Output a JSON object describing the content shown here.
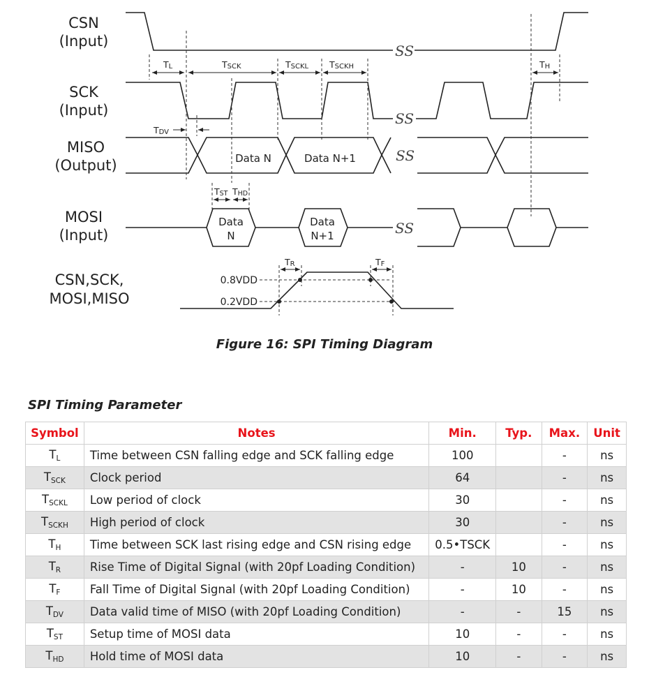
{
  "diagram": {
    "signals": {
      "csn": [
        "CSN",
        "(Input)"
      ],
      "sck": [
        "SCK",
        "(Input)"
      ],
      "miso": [
        "MISO",
        "(Output)"
      ],
      "mosi": [
        "MOSI",
        "(Input)"
      ],
      "all": [
        "CSN,SCK,",
        "MOSI,MISO"
      ]
    },
    "timing_labels": {
      "tl": "T",
      "tl_sub": "L",
      "tsck": "T",
      "tsck_sub": "SCK",
      "tsckl": "T",
      "tsckl_sub": "SCKL",
      "tsckh": "T",
      "tsckh_sub": "SCKH",
      "th": "T",
      "th_sub": "H",
      "tdv": "T",
      "tdv_sub": "DV",
      "tst": "T",
      "tst_sub": "ST",
      "thd": "T",
      "thd_sub": "HD",
      "tr": "T",
      "tr_sub": "R",
      "tf": "T",
      "tf_sub": "F"
    },
    "data_labels": {
      "miso_n": "Data N",
      "miso_n1": "Data N+1",
      "mosi_n_1": "Data",
      "mosi_n_2": "N",
      "mosi_n1_1": "Data",
      "mosi_n1_2": "N+1"
    },
    "voltages": {
      "high": "0.8VDD",
      "low": "0.2VDD"
    },
    "break_mark": "SS"
  },
  "caption": "Figure 16: SPI Timing Diagram",
  "table": {
    "title": "SPI Timing Parameter",
    "headers": [
      "Symbol",
      "Notes",
      "Min.",
      "Typ.",
      "Max.",
      "Unit"
    ],
    "rows": [
      {
        "sym": "T",
        "sub": "L",
        "notes": "Time between CSN falling edge and SCK falling edge",
        "min": "100",
        "typ": "",
        "max": "-",
        "unit": "ns"
      },
      {
        "sym": "T",
        "sub": "SCK",
        "notes": "Clock period",
        "min": "64",
        "typ": "",
        "max": "-",
        "unit": "ns"
      },
      {
        "sym": "T",
        "sub": "SCKL",
        "notes": "Low period of clock",
        "min": "30",
        "typ": "",
        "max": "-",
        "unit": "ns"
      },
      {
        "sym": "T",
        "sub": "SCKH",
        "notes": "High period of clock",
        "min": "30",
        "typ": "",
        "max": "-",
        "unit": "ns"
      },
      {
        "sym": "T",
        "sub": "H",
        "notes": "Time between SCK last rising edge and CSN rising edge",
        "min": "0.5•TSCK",
        "typ": "",
        "max": "-",
        "unit": "ns"
      },
      {
        "sym": "T",
        "sub": "R",
        "notes": "Rise Time of Digital Signal (with 20pf Loading Condition)",
        "min": "-",
        "typ": "10",
        "max": "-",
        "unit": "ns"
      },
      {
        "sym": "T",
        "sub": "F",
        "notes": "Fall Time of Digital Signal (with 20pf Loading Condition)",
        "min": "-",
        "typ": "10",
        "max": "-",
        "unit": "ns"
      },
      {
        "sym": "T",
        "sub": "DV",
        "notes": "Data valid time of MISO (with 20pf Loading Condition)",
        "min": "-",
        "typ": "-",
        "max": "15",
        "unit": "ns"
      },
      {
        "sym": "T",
        "sub": "ST",
        "notes": "Setup time of MOSI data",
        "min": "10",
        "typ": "-",
        "max": "-",
        "unit": "ns"
      },
      {
        "sym": "T",
        "sub": "HD",
        "notes": "Hold time of MOSI data",
        "min": "10",
        "typ": "-",
        "max": "-",
        "unit": "ns"
      }
    ]
  }
}
